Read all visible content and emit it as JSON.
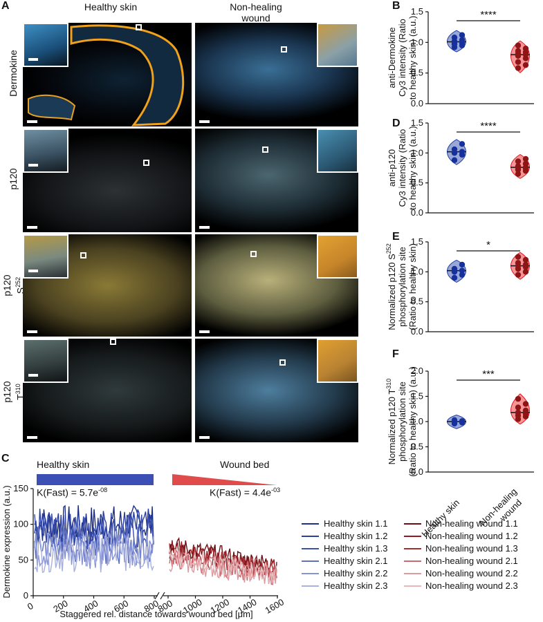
{
  "panel_labels": {
    "A": "A",
    "B": "B",
    "C": "C",
    "D": "D",
    "E": "E",
    "F": "F"
  },
  "panel_a": {
    "col_healthy": "Healthy skin",
    "col_wound": "Non-healing wound",
    "rows": [
      {
        "label": "Dermokine"
      },
      {
        "label": "p120"
      },
      {
        "label": "p120 S252",
        "l1": "p120",
        "l2": "S",
        "sup": "252"
      },
      {
        "label": "p120 T310",
        "l1": "p120",
        "l2": "T",
        "sup": "310"
      }
    ]
  },
  "colors": {
    "healthy": "#1f3fa8",
    "wound": "#e8141b",
    "healthy_dark": "#17319c",
    "wound_dark": "#8e1515"
  },
  "panel_c": {
    "left_title": "Healthy skin",
    "right_title": "Wound bed",
    "k_healthy": "K(Fast) = 5.7e",
    "k_healthy_exp": "-08",
    "k_wound": "K(Fast) = 4.4e",
    "k_wound_exp": "-03",
    "ylabel": "Dermokine expression (a.u.)",
    "xlabel": "Staggered rel. distance towards wound bed [μm]",
    "legend_healthy": [
      {
        "name": "Healthy skin 1.1",
        "color": "#1c2f8a"
      },
      {
        "name": "Healthy skin 1.2",
        "color": "#2a3f9e"
      },
      {
        "name": "Healthy skin 1.3",
        "color": "#3a4fae"
      },
      {
        "name": "Healthy skin 2.1",
        "color": "#5f70bf"
      },
      {
        "name": "Healthy skin 2.2",
        "color": "#8894d1"
      },
      {
        "name": "Healthy skin 2.3",
        "color": "#a7b0de"
      }
    ],
    "legend_wound": [
      {
        "name": "Non-healing wound 1.1",
        "color": "#6b0d12"
      },
      {
        "name": "Non-healing wound 1.2",
        "color": "#8e1a20"
      },
      {
        "name": "Non-healing wound 1.3",
        "color": "#a62a30"
      },
      {
        "name": "Non-healing wound 2.1",
        "color": "#c86a70"
      },
      {
        "name": "Non-healing wound 2.2",
        "color": "#dc9a9e"
      },
      {
        "name": "Non-healing wound 2.3",
        "color": "#e8b7b9"
      }
    ]
  },
  "chart_data": [
    {
      "panel": "B",
      "type": "scatter",
      "ylabel": "anti-Dermokine Cy3 intensity (Ratio to healthy skin) (a.u.)",
      "categories": [
        "Healthy skin",
        "Non-healing wound"
      ],
      "ylim": [
        0,
        1.5
      ],
      "yticks": [
        "0.0",
        "0.5",
        "1.0",
        "1.5"
      ],
      "significance": "****",
      "series": [
        {
          "name": "Healthy skin",
          "values": [
            0.92,
            0.95,
            0.97,
            0.99,
            1.0,
            1.01,
            1.02,
            1.04,
            1.08,
            1.12
          ]
        },
        {
          "name": "Non-healing wound",
          "values": [
            0.58,
            0.63,
            0.68,
            0.74,
            0.78,
            0.8,
            0.82,
            0.84,
            0.86,
            0.9,
            0.95
          ]
        }
      ]
    },
    {
      "panel": "D",
      "type": "scatter",
      "ylabel": "anti-p120 Cy3 intensity (Ratio to healthy skin) (a.u.)",
      "categories": [
        "Healthy skin",
        "Non-healing wound"
      ],
      "ylim": [
        0,
        1.5
      ],
      "yticks": [
        "0.0",
        "0.5",
        "1.0",
        "1.5"
      ],
      "significance": "****",
      "series": [
        {
          "name": "Healthy skin",
          "values": [
            0.88,
            0.97,
            1.0,
            1.02,
            1.06,
            1.15
          ]
        },
        {
          "name": "Non-healing wound",
          "values": [
            0.65,
            0.7,
            0.72,
            0.74,
            0.75,
            0.76,
            0.78,
            0.82,
            0.86,
            0.9
          ]
        }
      ]
    },
    {
      "panel": "E",
      "type": "scatter",
      "ylabel": "Normalized p120 S252 phosphorylation site (Ratio to healthy skin)",
      "ylabel_l1": "Normalized p120 S",
      "ylabel_sup": "252",
      "ylabel_l2": "phosphorylation site",
      "ylabel_l3": "(Ratio to healthy skin)",
      "categories": [
        "Healthy skin",
        "Non-healing wound"
      ],
      "ylim": [
        0,
        1.5
      ],
      "yticks": [
        "0.0",
        "0.5",
        "1.0",
        "1.5"
      ],
      "significance": "*",
      "series": [
        {
          "name": "Healthy skin",
          "values": [
            0.9,
            0.95,
            1.0,
            1.02,
            1.05,
            1.12
          ]
        },
        {
          "name": "Non-healing wound",
          "values": [
            0.95,
            1.0,
            1.05,
            1.08,
            1.1,
            1.12,
            1.15,
            1.2,
            1.25
          ]
        }
      ]
    },
    {
      "panel": "F",
      "type": "scatter",
      "ylabel": "Normalized p120 T310 phosphorylation site (Ratio to healthy skin) (a.u.)",
      "ylabel_l1": "Normalized p120 T",
      "ylabel_sup": "310",
      "ylabel_l2": "phosphorylation site",
      "ylabel_l3": "(Ratio to healthy skin) (a.u.)",
      "categories": [
        "Healthy skin",
        "Non-healing wound"
      ],
      "ylim": [
        0,
        2.0
      ],
      "yticks": [
        "0.0",
        "0.5",
        "1.0",
        "1.5",
        "2.0"
      ],
      "significance": "***",
      "series": [
        {
          "name": "Healthy skin",
          "values": [
            0.96,
            0.98,
            1.0,
            1.01,
            1.03
          ]
        },
        {
          "name": "Non-healing wound",
          "values": [
            1.05,
            1.1,
            1.12,
            1.15,
            1.18,
            1.22,
            1.28,
            1.35,
            1.45
          ]
        }
      ]
    },
    {
      "panel": "C",
      "type": "line",
      "ylim": [
        0,
        150
      ],
      "yticks": [
        "0",
        "50",
        "100",
        "150"
      ],
      "xticks_left": [
        "0",
        "200",
        "400",
        "600",
        "800"
      ],
      "xticks_right": [
        "800",
        "1000",
        "1200",
        "1400",
        "1600"
      ],
      "series_healthy": [
        {
          "name": "Healthy skin 1.1",
          "mean": 100
        },
        {
          "name": "Healthy skin 1.2",
          "mean": 95
        },
        {
          "name": "Healthy skin 1.3",
          "mean": 88
        },
        {
          "name": "Healthy skin 2.1",
          "mean": 72
        },
        {
          "name": "Healthy skin 2.2",
          "mean": 65
        },
        {
          "name": "Healthy skin 2.3",
          "mean": 60
        }
      ],
      "series_wound": [
        {
          "name": "Non-healing wound 1.1",
          "start": 70,
          "end": 42
        },
        {
          "name": "Non-healing wound 1.2",
          "start": 66,
          "end": 38
        },
        {
          "name": "Non-healing wound 1.3",
          "start": 60,
          "end": 35
        },
        {
          "name": "Non-healing wound 2.1",
          "start": 52,
          "end": 28
        },
        {
          "name": "Non-healing wound 2.2",
          "start": 48,
          "end": 25
        },
        {
          "name": "Non-healing wound 2.3",
          "start": 58,
          "end": 30
        }
      ]
    }
  ]
}
